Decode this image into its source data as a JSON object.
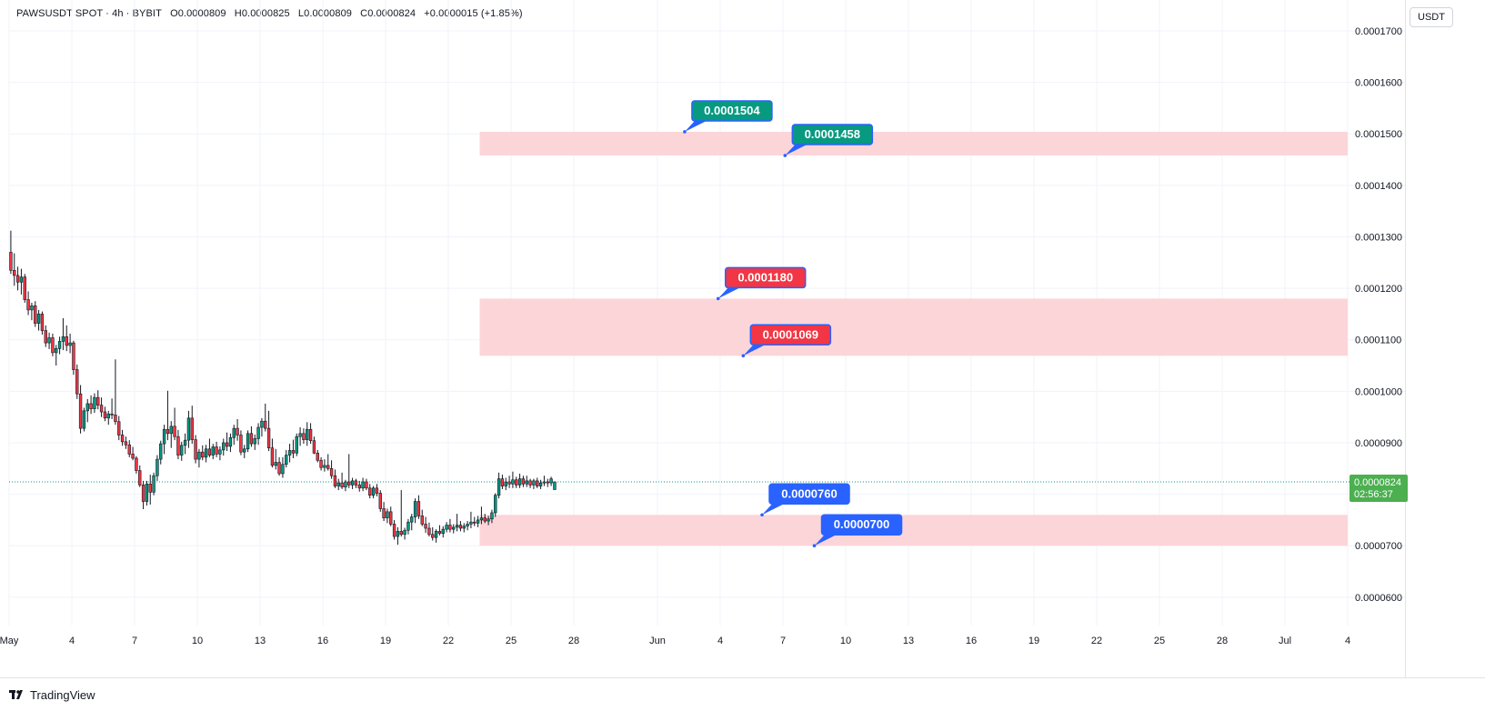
{
  "header": {
    "symbol": "PAWSUSDT SPOT · 4h · BYBIT",
    "open": "O0.0000809",
    "high": "H0.0000825",
    "low": "L0.0000809",
    "close": "C0.0000824",
    "change": "+0.0000015 (+1.85%)"
  },
  "currency_label": "USDT",
  "footer": {
    "brand": "TradingView"
  },
  "colors": {
    "up": "#089981",
    "down": "#f23645",
    "zone": "#fcd5d9",
    "label_green": "#089981",
    "label_red": "#f23645",
    "label_blue": "#2962ff",
    "last_price_bg": "#4caf50",
    "grid": "#f0f3fa"
  },
  "chart_data": {
    "type": "candlestick",
    "y_axis": {
      "ylim": [
        5.45e-05,
        0.000176
      ],
      "ticks": [
        "0.0001700",
        "0.0001600",
        "0.0001500",
        "0.0001400",
        "0.0001300",
        "0.0001200",
        "0.0001100",
        "0.0001000",
        "0.0000900",
        "0.0000800",
        "0.0000700",
        "0.0000600"
      ],
      "tick_values": [
        0.00017,
        0.00016,
        0.00015,
        0.00014,
        0.00013,
        0.00012,
        0.00011,
        0.0001,
        9e-05,
        8e-05,
        7e-05,
        6e-05
      ]
    },
    "x_axis": {
      "xlim_days": [
        0,
        64
      ],
      "ticks": [
        {
          "label": "May",
          "day": 0
        },
        {
          "label": "4",
          "day": 3
        },
        {
          "label": "7",
          "day": 6
        },
        {
          "label": "10",
          "day": 9
        },
        {
          "label": "13",
          "day": 12
        },
        {
          "label": "16",
          "day": 15
        },
        {
          "label": "19",
          "day": 18
        },
        {
          "label": "22",
          "day": 21
        },
        {
          "label": "25",
          "day": 24
        },
        {
          "label": "28",
          "day": 27
        },
        {
          "label": "Jun",
          "day": 31
        },
        {
          "label": "4",
          "day": 34
        },
        {
          "label": "7",
          "day": 37
        },
        {
          "label": "10",
          "day": 40
        },
        {
          "label": "13",
          "day": 43
        },
        {
          "label": "16",
          "day": 46
        },
        {
          "label": "19",
          "day": 49
        },
        {
          "label": "22",
          "day": 52
        },
        {
          "label": "25",
          "day": 55
        },
        {
          "label": "28",
          "day": 58
        },
        {
          "label": "Jul",
          "day": 61
        },
        {
          "label": "4",
          "day": 64
        }
      ]
    },
    "last_price": {
      "value": 8.24e-05,
      "label": "0.0000824",
      "countdown": "02:56:37"
    },
    "zones": [
      {
        "top": 0.0001504,
        "bottom": 0.0001458,
        "start_day": 22.5,
        "end_day": 64
      },
      {
        "top": 0.000118,
        "bottom": 0.0001069,
        "start_day": 22.5,
        "end_day": 64
      },
      {
        "top": 7.6e-05,
        "bottom": 7e-05,
        "start_day": 22.5,
        "end_day": 64
      }
    ],
    "price_labels": [
      {
        "text": "0.0001504",
        "value": 0.0001504,
        "day": 32.3,
        "color": "green"
      },
      {
        "text": "0.0001458",
        "value": 0.0001458,
        "day": 37.1,
        "color": "green"
      },
      {
        "text": "0.0001180",
        "value": 0.000118,
        "day": 33.9,
        "color": "red"
      },
      {
        "text": "0.0001069",
        "value": 0.0001069,
        "day": 35.1,
        "color": "red"
      },
      {
        "text": "0.0000760",
        "value": 7.6e-05,
        "day": 36.0,
        "color": "blue"
      },
      {
        "text": "0.0000700",
        "value": 7e-05,
        "day": 38.5,
        "color": "blue"
      }
    ],
    "candle_start_day": 0,
    "candles_per_day": 6,
    "candles": [
      [
        0.000127,
        0.0001312,
        0.0001228,
        0.0001235
      ],
      [
        0.0001235,
        0.0001268,
        0.0001205,
        0.0001225
      ],
      [
        0.0001225,
        0.0001242,
        0.0001196,
        0.0001212
      ],
      [
        0.0001212,
        0.0001238,
        0.0001188,
        0.0001222
      ],
      [
        0.0001222,
        0.0001228,
        0.0001172,
        0.0001178
      ],
      [
        0.0001178,
        0.0001194,
        0.0001148,
        0.0001158
      ],
      [
        0.0001158,
        0.0001172,
        0.0001138,
        0.0001166
      ],
      [
        0.0001166,
        0.0001175,
        0.0001125,
        0.0001132
      ],
      [
        0.0001132,
        0.0001158,
        0.0001118,
        0.000115
      ],
      [
        0.000115,
        0.0001155,
        0.000111,
        0.0001118
      ],
      [
        0.0001118,
        0.0001128,
        0.0001086,
        0.0001094
      ],
      [
        0.0001094,
        0.0001114,
        0.0001082,
        0.0001104
      ],
      [
        0.0001104,
        0.0001112,
        0.0001068,
        0.0001075
      ],
      [
        0.0001075,
        0.000109,
        0.000105,
        0.0001083
      ],
      [
        0.0001083,
        0.0001106,
        0.0001072,
        0.0001097
      ],
      [
        0.0001097,
        0.0001142,
        0.000108,
        0.0001106
      ],
      [
        0.0001106,
        0.0001128,
        0.0001078,
        0.0001089
      ],
      [
        0.0001089,
        0.0001112,
        0.0001074,
        0.0001094
      ],
      [
        0.0001094,
        0.0001098,
        0.0001032,
        0.0001042
      ],
      [
        0.0001042,
        0.0001052,
        9.85e-05,
        9.95e-05
      ],
      [
        9.95e-05,
        0.0001012,
        9.18e-05,
        9.28e-05
      ],
      [
        9.28e-05,
        9.68e-05,
        9.22e-05,
        9.62e-05
      ],
      [
        9.62e-05,
        9.85e-05,
        9.4e-05,
        9.76e-05
      ],
      [
        9.76e-05,
        9.92e-05,
        9.56e-05,
        9.66e-05
      ],
      [
        9.66e-05,
        9.96e-05,
        9.58e-05,
        9.88e-05
      ],
      [
        9.88e-05,
        0.0001002,
        9.65e-05,
        9.73e-05
      ],
      [
        9.73e-05,
        9.88e-05,
        9.5e-05,
        9.6e-05
      ],
      [
        9.6e-05,
        9.7e-05,
        9.42e-05,
        9.48e-05
      ],
      [
        9.48e-05,
        9.62e-05,
        9.35e-05,
        9.56e-05
      ],
      [
        9.56e-05,
        9.86e-05,
        9.46e-05,
        9.54e-05
      ],
      [
        9.54e-05,
        0.0001062,
        9.35e-05,
        9.41e-05
      ],
      [
        9.41e-05,
        9.52e-05,
        9.05e-05,
        9.15e-05
      ],
      [
        9.15e-05,
        9.25e-05,
        8.94e-05,
        9.02e-05
      ],
      [
        9.02e-05,
        9.12e-05,
        8.88e-05,
        8.96e-05
      ],
      [
        8.96e-05,
        9.05e-05,
        8.72e-05,
        8.78e-05
      ],
      [
        8.78e-05,
        8.92e-05,
        8.66e-05,
        8.7e-05
      ],
      [
        8.7e-05,
        8.74e-05,
        8.4e-05,
        8.46e-05
      ],
      [
        8.46e-05,
        8.56e-05,
        8.14e-05,
        8.18e-05
      ],
      [
        8.18e-05,
        8.26e-05,
        7.71e-05,
        7.86e-05
      ],
      [
        7.86e-05,
        8.26e-05,
        7.78e-05,
        8.2e-05
      ],
      [
        8.2e-05,
        8.38e-05,
        7.8e-05,
        8.04e-05
      ],
      [
        8.04e-05,
        8.42e-05,
        7.98e-05,
        8.36e-05
      ],
      [
        8.36e-05,
        8.76e-05,
        8.26e-05,
        8.68e-05
      ],
      [
        8.68e-05,
        9.04e-05,
        8.58e-05,
        8.98e-05
      ],
      [
        8.98e-05,
        9.35e-05,
        8.78e-05,
        9.26e-05
      ],
      [
        9.26e-05,
        0.0001001,
        9.05e-05,
        9.18e-05
      ],
      [
        9.18e-05,
        9.42e-05,
        8.9e-05,
        9.32e-05
      ],
      [
        9.32e-05,
        9.68e-05,
        9.05e-05,
        9.12e-05
      ],
      [
        9.12e-05,
        9.25e-05,
        8.68e-05,
        8.76e-05
      ],
      [
        8.76e-05,
        9.02e-05,
        8.65e-05,
        8.95e-05
      ],
      [
        8.95e-05,
        9.18e-05,
        8.78e-05,
        9.05e-05
      ],
      [
        9.05e-05,
        9.62e-05,
        8.9e-05,
        9.48e-05
      ],
      [
        9.48e-05,
        9.72e-05,
        8.98e-05,
        9.06e-05
      ],
      [
        9.06e-05,
        9.15e-05,
        8.6e-05,
        8.68e-05
      ],
      [
        8.68e-05,
        8.88e-05,
        8.52e-05,
        8.82e-05
      ],
      [
        8.82e-05,
        8.95e-05,
        8.66e-05,
        8.72e-05
      ],
      [
        8.72e-05,
        8.96e-05,
        8.62e-05,
        8.88e-05
      ],
      [
        8.88e-05,
        9.08e-05,
        8.72e-05,
        8.76e-05
      ],
      [
        8.76e-05,
        8.98e-05,
        8.68e-05,
        8.92e-05
      ],
      [
        8.92e-05,
        9.02e-05,
        8.72e-05,
        8.78e-05
      ],
      [
        8.78e-05,
        8.93e-05,
        8.66e-05,
        8.86e-05
      ],
      [
        8.86e-05,
        9.08e-05,
        8.75e-05,
        9e-05
      ],
      [
        9e-05,
        9.2e-05,
        8.84e-05,
        8.93e-05
      ],
      [
        8.93e-05,
        9.18e-05,
        8.82e-05,
        9.1e-05
      ],
      [
        9.1e-05,
        9.35e-05,
        8.96e-05,
        9.28e-05
      ],
      [
        9.28e-05,
        9.46e-05,
        9.04e-05,
        9.15e-05
      ],
      [
        9.15e-05,
        9.24e-05,
        8.76e-05,
        8.82e-05
      ],
      [
        8.82e-05,
        8.96e-05,
        8.7e-05,
        8.88e-05
      ],
      [
        8.88e-05,
        9.24e-05,
        8.82e-05,
        9.18e-05
      ],
      [
        9.18e-05,
        9.32e-05,
        8.92e-05,
        8.98e-05
      ],
      [
        8.98e-05,
        9.16e-05,
        8.86e-05,
        9.08e-05
      ],
      [
        9.08e-05,
        9.38e-05,
        8.96e-05,
        9.3e-05
      ],
      [
        9.3e-05,
        9.48e-05,
        9.12e-05,
        9.42e-05
      ],
      [
        9.42e-05,
        9.76e-05,
        9.22e-05,
        9.28e-05
      ],
      [
        9.28e-05,
        9.62e-05,
        8.84e-05,
        8.9e-05
      ],
      [
        8.9e-05,
        9.08e-05,
        8.52e-05,
        8.56e-05
      ],
      [
        8.56e-05,
        8.88e-05,
        8.48e-05,
        8.62e-05
      ],
      [
        8.62e-05,
        8.72e-05,
        8.36e-05,
        8.4e-05
      ],
      [
        8.4e-05,
        8.72e-05,
        8.32e-05,
        8.58e-05
      ],
      [
        8.58e-05,
        8.86e-05,
        8.52e-05,
        8.76e-05
      ],
      [
        8.76e-05,
        8.98e-05,
        8.62e-05,
        8.85e-05
      ],
      [
        8.85e-05,
        9.06e-05,
        8.7e-05,
        8.8e-05
      ],
      [
        8.8e-05,
        9.18e-05,
        8.74e-05,
        9.12e-05
      ],
      [
        9.12e-05,
        9.3e-05,
        8.94e-05,
        9.18e-05
      ],
      [
        9.18e-05,
        9.28e-05,
        8.98e-05,
        9.06e-05
      ],
      [
        9.06e-05,
        9.4e-05,
        8.94e-05,
        9.26e-05
      ],
      [
        9.26e-05,
        9.38e-05,
        8.98e-05,
        9.04e-05
      ],
      [
        9.04e-05,
        9.12e-05,
        8.78e-05,
        8.8e-05
      ],
      [
        8.8e-05,
        8.86e-05,
        8.62e-05,
        8.66e-05
      ],
      [
        8.66e-05,
        8.72e-05,
        8.46e-05,
        8.52e-05
      ],
      [
        8.52e-05,
        8.68e-05,
        8.44e-05,
        8.56e-05
      ],
      [
        8.56e-05,
        8.78e-05,
        8.46e-05,
        8.5e-05
      ],
      [
        8.5e-05,
        8.66e-05,
        8.3e-05,
        8.36e-05
      ],
      [
        8.36e-05,
        8.48e-05,
        8.12e-05,
        8.16e-05
      ],
      [
        8.16e-05,
        8.3e-05,
        8.08e-05,
        8.22e-05
      ],
      [
        8.22e-05,
        8.42e-05,
        8.1e-05,
        8.14e-05
      ],
      [
        8.14e-05,
        8.28e-05,
        8.06e-05,
        8.24e-05
      ],
      [
        8.24e-05,
        8.78e-05,
        8.12e-05,
        8.18e-05
      ],
      [
        8.18e-05,
        8.32e-05,
        8.1e-05,
        8.26e-05
      ],
      [
        8.26e-05,
        8.3e-05,
        8.12e-05,
        8.18e-05
      ],
      [
        8.18e-05,
        8.26e-05,
        8.05e-05,
        8.12e-05
      ],
      [
        8.12e-05,
        8.32e-05,
        8.06e-05,
        8.24e-05
      ],
      [
        8.24e-05,
        8.3e-05,
        8.08e-05,
        8.12e-05
      ],
      [
        8.12e-05,
        8.2e-05,
        7.92e-05,
        7.98e-05
      ],
      [
        7.98e-05,
        8.16e-05,
        7.92e-05,
        8.12e-05
      ],
      [
        8.12e-05,
        8.2e-05,
        7.96e-05,
        8.02e-05
      ],
      [
        8.02e-05,
        8.08e-05,
        7.66e-05,
        7.72e-05
      ],
      [
        7.72e-05,
        7.85e-05,
        7.48e-05,
        7.54e-05
      ],
      [
        7.54e-05,
        7.72e-05,
        7.44e-05,
        7.66e-05
      ],
      [
        7.66e-05,
        7.76e-05,
        7.38e-05,
        7.42e-05
      ],
      [
        7.42e-05,
        7.5e-05,
        7.12e-05,
        7.18e-05
      ],
      [
        7.18e-05,
        7.36e-05,
        7.02e-05,
        7.28e-05
      ],
      [
        7.28e-05,
        8.08e-05,
        7.18e-05,
        7.22e-05
      ],
      [
        7.22e-05,
        7.35e-05,
        7.12e-05,
        7.3e-05
      ],
      [
        7.3e-05,
        7.52e-05,
        7.22e-05,
        7.46e-05
      ],
      [
        7.46e-05,
        7.62e-05,
        7.3e-05,
        7.56e-05
      ],
      [
        7.56e-05,
        7.92e-05,
        7.44e-05,
        7.86e-05
      ],
      [
        7.86e-05,
        7.98e-05,
        7.52e-05,
        7.58e-05
      ],
      [
        7.58e-05,
        7.7e-05,
        7.38e-05,
        7.42e-05
      ],
      [
        7.42e-05,
        7.56e-05,
        7.25e-05,
        7.34e-05
      ],
      [
        7.34e-05,
        7.45e-05,
        7.18e-05,
        7.22e-05
      ],
      [
        7.22e-05,
        7.36e-05,
        7.1e-05,
        7.16e-05
      ],
      [
        7.16e-05,
        7.32e-05,
        7.06e-05,
        7.28e-05
      ],
      [
        7.28e-05,
        7.4e-05,
        7.2e-05,
        7.24e-05
      ],
      [
        7.24e-05,
        7.38e-05,
        7.16e-05,
        7.32e-05
      ],
      [
        7.32e-05,
        7.46e-05,
        7.26e-05,
        7.4e-05
      ],
      [
        7.4e-05,
        7.52e-05,
        7.26e-05,
        7.32e-05
      ],
      [
        7.32e-05,
        7.42e-05,
        7.24e-05,
        7.36e-05
      ],
      [
        7.36e-05,
        7.62e-05,
        7.28e-05,
        7.4e-05
      ],
      [
        7.4e-05,
        7.48e-05,
        7.28e-05,
        7.34e-05
      ],
      [
        7.34e-05,
        7.44e-05,
        7.26e-05,
        7.38e-05
      ],
      [
        7.38e-05,
        7.48e-05,
        7.3e-05,
        7.42e-05
      ],
      [
        7.42e-05,
        7.66e-05,
        7.34e-05,
        7.46e-05
      ],
      [
        7.46e-05,
        7.56e-05,
        7.38e-05,
        7.44e-05
      ],
      [
        7.44e-05,
        7.58e-05,
        7.36e-05,
        7.5e-05
      ],
      [
        7.5e-05,
        7.76e-05,
        7.42e-05,
        7.54e-05
      ],
      [
        7.54e-05,
        7.62e-05,
        7.44e-05,
        7.48e-05
      ],
      [
        7.48e-05,
        7.58e-05,
        7.4e-05,
        7.52e-05
      ],
      [
        7.52e-05,
        7.7e-05,
        7.44e-05,
        7.64e-05
      ],
      [
        7.64e-05,
        8.02e-05,
        7.56e-05,
        7.98e-05
      ],
      [
        7.98e-05,
        8.42e-05,
        7.92e-05,
        8.3e-05
      ],
      [
        8.3e-05,
        8.38e-05,
        8.1e-05,
        8.16e-05
      ],
      [
        8.16e-05,
        8.32e-05,
        8.08e-05,
        8.24e-05
      ],
      [
        8.24e-05,
        8.36e-05,
        8.12e-05,
        8.2e-05
      ],
      [
        8.2e-05,
        8.44e-05,
        8.12e-05,
        8.28e-05
      ],
      [
        8.28e-05,
        8.34e-05,
        8.12e-05,
        8.18e-05
      ],
      [
        8.18e-05,
        8.4e-05,
        8.12e-05,
        8.3e-05
      ],
      [
        8.3e-05,
        8.36e-05,
        8.14e-05,
        8.2e-05
      ],
      [
        8.2e-05,
        8.36e-05,
        8.14e-05,
        8.26e-05
      ],
      [
        8.26e-05,
        8.3e-05,
        8.12e-05,
        8.18e-05
      ],
      [
        8.18e-05,
        8.3e-05,
        8.1e-05,
        8.26e-05
      ],
      [
        8.26e-05,
        8.32e-05,
        8.12e-05,
        8.16e-05
      ],
      [
        8.16e-05,
        8.28e-05,
        8.1e-05,
        8.22e-05
      ],
      [
        8.22e-05,
        8.36e-05,
        8.16e-05,
        8.24e-05
      ],
      [
        8.24e-05,
        8.3e-05,
        8.14e-05,
        8.22e-05
      ],
      [
        8.22e-05,
        8.34e-05,
        8.16e-05,
        8.3e-05
      ],
      [
        8.09e-05,
        8.25e-05,
        8.09e-05,
        8.24e-05
      ]
    ]
  }
}
